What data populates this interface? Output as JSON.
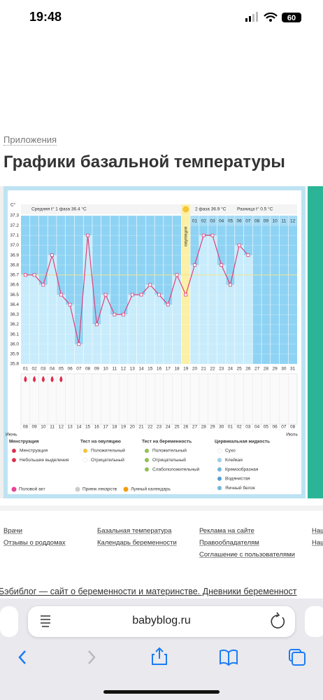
{
  "status_bar": {
    "time": "19:48",
    "battery": "60"
  },
  "breadcrumb": "Приложения",
  "page_title": "Графики базальной температуры",
  "chart_data": {
    "type": "line",
    "y_axis_label": "C°",
    "stats": {
      "phase1": "Средняя t° 1 фаза 36.4 °C",
      "phase2": "2 фаза 36.9 °C",
      "difference": "Разница t° 0.5 °C"
    },
    "ovulation_label": "овуляция",
    "ovulation_day": "19",
    "categories": [
      "01",
      "02",
      "03",
      "04",
      "05",
      "06",
      "07",
      "08",
      "09",
      "10",
      "11",
      "12",
      "13",
      "14",
      "15",
      "16",
      "17",
      "18",
      "19",
      "20",
      "21",
      "22",
      "23",
      "24",
      "25",
      "26",
      "27",
      "28",
      "29",
      "30",
      "31"
    ],
    "values": [
      36.7,
      36.7,
      36.6,
      36.9,
      36.5,
      36.4,
      36.0,
      37.1,
      36.2,
      36.5,
      36.3,
      36.3,
      36.5,
      36.5,
      36.6,
      36.5,
      36.4,
      36.7,
      36.5,
      36.8,
      37.1,
      37.1,
      36.8,
      36.6,
      37.0,
      36.9,
      null,
      null,
      null,
      null,
      null
    ],
    "color": "#e0407a",
    "ylim": [
      35.8,
      37.3
    ],
    "yticks": [
      35.8,
      35.9,
      {
        "value": 36.0,
        "label": "36.0"
      },
      36.1,
      36.2,
      36.3,
      36.4,
      36.5,
      36.6,
      36.7,
      36.8,
      36.9,
      {
        "value": 37.0,
        "label": "37.0"
      },
      37.1,
      37.2,
      37.3
    ],
    "grid": true,
    "coverline": 36.7,
    "phase2_days": [
      "01",
      "02",
      "03",
      "04",
      "05",
      "06",
      "07",
      "08",
      "09",
      "10",
      "11",
      "12"
    ],
    "menstruation_days": [
      "01",
      "02",
      "03",
      "04",
      "05"
    ],
    "dates": [
      "08",
      "09",
      "10",
      "11",
      "12",
      "13",
      "14",
      "15",
      "16",
      "17",
      "18",
      "19",
      "20",
      "21",
      "22",
      "23",
      "24",
      "25",
      "26",
      "27",
      "28",
      "29",
      "30",
      "01",
      "02",
      "03",
      "04",
      "05",
      "06",
      "07",
      "08"
    ],
    "months": [
      "Июнь",
      "Июль"
    ],
    "legend": [
      {
        "title": "Менструация",
        "items": [
          "Менструация",
          "Небольшие выделения"
        ]
      },
      {
        "title": "Тест на овуляцию",
        "items": [
          "Положительный",
          "Отрицательный"
        ]
      },
      {
        "title": "Тест на беременность",
        "items": [
          "Положительный",
          "Отрицательный",
          "Слабоположительный"
        ]
      },
      {
        "title": "Цервикальная жидкость",
        "items": [
          "Сухо",
          "Клейкая",
          "Кремообразная",
          "Водянистая",
          "Яичный белок"
        ]
      }
    ],
    "extras": [
      "Половой акт",
      "Прием лекарств",
      "Лунный календарь"
    ]
  },
  "footer": {
    "columns": [
      [
        "Врачи",
        "Отзывы о роддомах"
      ],
      [
        "Базальная температура",
        "Календарь беременности"
      ],
      [
        "Реклама на сайте",
        "Правообладателям",
        "Соглашение с пользователями"
      ],
      [
        "Наш",
        "Наш"
      ]
    ],
    "tagline": "Бэбиблог — сайт о беременности и материнстве. Дневники беременност"
  },
  "url": "babyblog.ru"
}
